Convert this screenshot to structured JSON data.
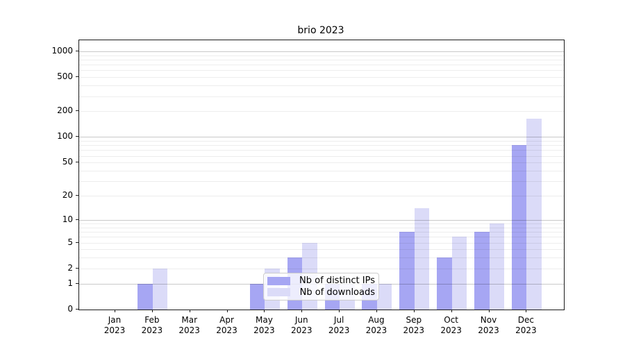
{
  "title": "brio 2023",
  "legend": {
    "items": [
      {
        "key": "distinct-ips",
        "label": "Nb of distinct IPs",
        "color": "#a6a6f3"
      },
      {
        "key": "downloads",
        "label": "Nb of downloads",
        "color": "#dbdbf8"
      }
    ],
    "position": "lower center"
  },
  "colors": {
    "bar_distinct_ips": "#a6a6f3",
    "bar_downloads": "#dbdbf8",
    "grid_major": "#00000036",
    "grid_minor": "#00000012",
    "axis_spine": "#1a1a1a",
    "legend_border": "#cccccc",
    "background": "#ffffff"
  },
  "chart_data": {
    "type": "bar",
    "title": "brio 2023",
    "categories": [
      "Jan 2023",
      "Feb 2023",
      "Mar 2023",
      "Apr 2023",
      "May 2023",
      "Jun 2023",
      "Jul 2023",
      "Aug 2023",
      "Sep 2023",
      "Oct 2023",
      "Nov 2023",
      "Dec 2023"
    ],
    "x_tick_labels": [
      {
        "month": "Jan",
        "year": "2023"
      },
      {
        "month": "Feb",
        "year": "2023"
      },
      {
        "month": "Mar",
        "year": "2023"
      },
      {
        "month": "Apr",
        "year": "2023"
      },
      {
        "month": "May",
        "year": "2023"
      },
      {
        "month": "Jun",
        "year": "2023"
      },
      {
        "month": "Jul",
        "year": "2023"
      },
      {
        "month": "Aug",
        "year": "2023"
      },
      {
        "month": "Sep",
        "year": "2023"
      },
      {
        "month": "Oct",
        "year": "2023"
      },
      {
        "month": "Nov",
        "year": "2023"
      },
      {
        "month": "Dec",
        "year": "2023"
      }
    ],
    "series": [
      {
        "name": "Nb of distinct IPs",
        "color": "#a6a6f3",
        "values": [
          0,
          1,
          0,
          0,
          1,
          3,
          1,
          1,
          7,
          3,
          7,
          80
        ]
      },
      {
        "name": "Nb of downloads",
        "color": "#dbdbf8",
        "values": [
          0,
          2,
          0,
          0,
          2,
          5,
          1,
          1,
          14,
          6,
          9,
          165
        ]
      }
    ],
    "xlabel": "",
    "ylabel": "",
    "yscale": "log(1+y)",
    "ylim": [
      0,
      1345
    ],
    "y_tick_values": [
      0,
      1,
      2,
      5,
      10,
      20,
      50,
      100,
      200,
      500,
      1000
    ],
    "y_major_gridlines": [
      1,
      10,
      100,
      1000
    ],
    "y_minor_gridlines": [
      2,
      3,
      4,
      5,
      6,
      7,
      8,
      9,
      20,
      30,
      40,
      50,
      60,
      70,
      80,
      90,
      200,
      300,
      400,
      500,
      600,
      700,
      800,
      900
    ],
    "grid": true,
    "legend_position": "lower center"
  }
}
